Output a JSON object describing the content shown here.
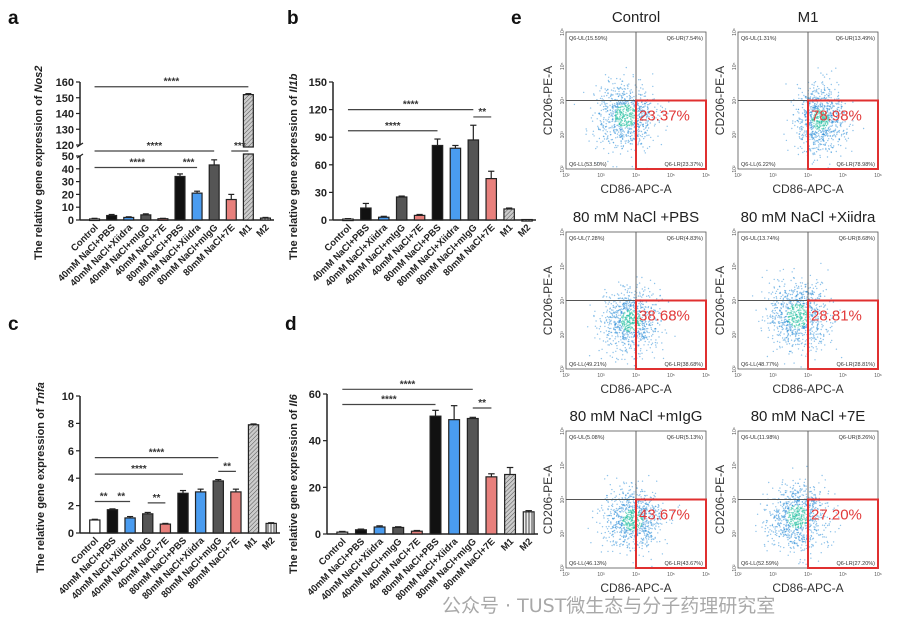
{
  "panel_letters": {
    "a": "a",
    "b": "b",
    "c": "c",
    "d": "d",
    "e": "e"
  },
  "colors": {
    "black": "#111111",
    "blue": "#4a9cf0",
    "gray": "#555555",
    "salmon": "#e8807c",
    "white": "#ffffff",
    "gate": "#e03030",
    "dot": "#2f8fd8",
    "dot_dense": "#22c0a0"
  },
  "chart_data": [
    {
      "id": "a",
      "type": "bar",
      "ylabel_prefix": "The relative gene expression of ",
      "gene": "Nos2",
      "categories": [
        "Control",
        "40mM NaCl+PBS",
        "40mM NaCl+Xiidra",
        "40mM NaCl+mIgG",
        "40mM NaCl+7E",
        "80mM NaCl+PBS",
        "80mM NaCl+Xiidra",
        "80mM NaCl+mIgG",
        "80mM NaCl+7E",
        "M1",
        "M2"
      ],
      "values": [
        0.8,
        3.5,
        2,
        4,
        1,
        34,
        21,
        43,
        16,
        152,
        1.5
      ],
      "errors": [
        0.5,
        0.8,
        0.5,
        0.8,
        0.3,
        2,
        1.5,
        4,
        4,
        0.6,
        0.5
      ],
      "ylim": [
        0,
        160
      ],
      "axis_break": [
        50,
        120
      ],
      "yticks": [
        "0",
        "10",
        "20",
        "30",
        "40",
        "50",
        "120",
        "130",
        "140",
        "150",
        "160"
      ],
      "significance": [
        {
          "from": 0,
          "to": 9,
          "y": 157,
          "label": "****"
        },
        {
          "from": 0,
          "to": 7,
          "y": 119,
          "label": "****"
        },
        {
          "from": 8,
          "to": 9,
          "y": 119,
          "label": "***"
        },
        {
          "from": 0,
          "to": 5,
          "y": 41,
          "label": "****"
        },
        {
          "from": 5,
          "to": 6,
          "y": 41,
          "label": "***"
        }
      ]
    },
    {
      "id": "b",
      "type": "bar",
      "ylabel_prefix": "The relative gene expression of ",
      "gene": "Il1b",
      "categories": [
        "Control",
        "40mM NaCl+PBS",
        "40mM NaCl+Xiidra",
        "40mM NaCl+mIgG",
        "40mM NaCl+7E",
        "80mM NaCl+PBS",
        "80mM NaCl+Xiidra",
        "80mM NaCl+mIgG",
        "80mM NaCl+7E",
        "M1",
        "M2"
      ],
      "values": [
        1,
        13,
        3,
        25,
        5,
        81,
        78,
        87,
        45,
        12,
        0.5
      ],
      "errors": [
        0.5,
        5,
        1,
        1,
        1,
        7,
        3,
        16,
        8,
        1,
        0
      ],
      "ylim": [
        0,
        150
      ],
      "yticks": [
        "0",
        "30",
        "60",
        "90",
        "120",
        "150"
      ],
      "significance": [
        {
          "from": 0,
          "to": 7,
          "y": 120,
          "label": "****"
        },
        {
          "from": 7,
          "to": 8,
          "y": 112,
          "label": "**"
        },
        {
          "from": 0,
          "to": 5,
          "y": 97,
          "label": "****"
        }
      ]
    },
    {
      "id": "c",
      "type": "bar",
      "ylabel_prefix": "The relative gene expression of ",
      "gene": "Tnfa",
      "categories": [
        "Control",
        "40mM NaCl+PBS",
        "40mM NaCl+Xiidra",
        "40mM NaCl+mIgG",
        "40mM NaCl+7E",
        "80mM NaCl+PBS",
        "80mM NaCl+Xiidra",
        "80mM NaCl+mIgG",
        "80mM NaCl+7E",
        "M1",
        "M2"
      ],
      "values": [
        0.95,
        1.7,
        1.1,
        1.4,
        0.65,
        2.9,
        3.0,
        3.8,
        3.0,
        7.9,
        0.7
      ],
      "errors": [
        0.05,
        0.06,
        0.1,
        0.1,
        0.05,
        0.2,
        0.2,
        0.1,
        0.2,
        0.06,
        0.05
      ],
      "ylim": [
        0,
        10
      ],
      "yticks": [
        "0",
        "2",
        "4",
        "6",
        "8",
        "10"
      ],
      "significance": [
        {
          "from": 0,
          "to": 7,
          "y": 5.5,
          "label": "****"
        },
        {
          "from": 0,
          "to": 5,
          "y": 4.3,
          "label": "****"
        },
        {
          "from": 0,
          "to": 1,
          "y": 2.3,
          "label": "**"
        },
        {
          "from": 1,
          "to": 2,
          "y": 2.3,
          "label": "**"
        },
        {
          "from": 3,
          "to": 4,
          "y": 2.2,
          "label": "**"
        },
        {
          "from": 7,
          "to": 8,
          "y": 4.5,
          "label": "**"
        }
      ]
    },
    {
      "id": "d",
      "type": "bar",
      "ylabel_prefix": "The relative gene expression of ",
      "gene": "Il6",
      "categories": [
        "Control",
        "40mM NaCl+PBS",
        "40mM NaCl+Xiidra",
        "40mM NaCl+mIgG",
        "40mM NaCl+7E",
        "80mM NaCl+PBS",
        "80mM NaCl+Xiidra",
        "80mM NaCl+mIgG",
        "80mM NaCl+7E",
        "M1",
        "M2"
      ],
      "values": [
        0.8,
        1.8,
        3,
        2.8,
        1.2,
        50.5,
        49,
        49.5,
        24.5,
        25.5,
        9.5
      ],
      "errors": [
        0.3,
        0.3,
        0.5,
        0.3,
        0.3,
        2.5,
        6,
        0.5,
        1.3,
        3,
        0.5
      ],
      "ylim": [
        0,
        60
      ],
      "yticks": [
        "0",
        "20",
        "40",
        "60"
      ],
      "significance": [
        {
          "from": 0,
          "to": 7,
          "y": 62,
          "label": "****"
        },
        {
          "from": 0,
          "to": 5,
          "y": 55.5,
          "label": "****"
        },
        {
          "from": 7,
          "to": 8,
          "y": 54,
          "label": "**"
        }
      ]
    }
  ],
  "flow": {
    "xlabel": "CD86-APC-A",
    "ylabel": "CD206-PE-A",
    "ticks": [
      "10²",
      "10³",
      "10⁴",
      "10⁵",
      "10⁶"
    ],
    "axis_log_range": [
      2,
      6
    ],
    "gate_log": [
      4,
      4
    ],
    "plots": [
      {
        "title": "Control",
        "ul": "Q6-UL(15.59%)",
        "ur": "Q6-UR(7.54%)",
        "ll": "Q6-LL(53.50%)",
        "lr": "Q6-LR(23.37%)",
        "big": "23.37%",
        "cloud_center": [
          3.7,
          3.55
        ],
        "cloud_sd": [
          0.42,
          0.48
        ]
      },
      {
        "title": "M1",
        "ul": "Q6-UL(1.31%)",
        "ur": "Q6-UR(13.49%)",
        "ll": "Q6-LL(6.22%)",
        "lr": "Q6-LR(78.98%)",
        "big": "78.98%",
        "cloud_center": [
          4.35,
          3.45
        ],
        "cloud_sd": [
          0.35,
          0.45
        ]
      },
      {
        "title": "80 mM NaCl +PBS",
        "ul": "Q6-UL(7.28%)",
        "ur": "Q6-UR(4.83%)",
        "ll": "Q6-LL(49.21%)",
        "lr": "Q6-LR(38.68%)",
        "big": "38.68%",
        "cloud_center": [
          3.85,
          3.4
        ],
        "cloud_sd": [
          0.42,
          0.45
        ]
      },
      {
        "title": "80 mM NaCl +Xiidra",
        "ul": "Q6-UL(13.74%)",
        "ur": "Q6-UR(8.68%)",
        "ll": "Q6-LL(48.77%)",
        "lr": "Q6-LR(28.81%)",
        "big": "28.81%",
        "cloud_center": [
          3.7,
          3.55
        ],
        "cloud_sd": [
          0.42,
          0.5
        ]
      },
      {
        "title": "80 mM NaCl +mIgG",
        "ul": "Q6-UL(5.08%)",
        "ur": "Q6-UR(5.13%)",
        "ll": "Q6-LL(46.13%)",
        "lr": "Q6-LR(43.67%)",
        "big": "43.67%",
        "cloud_center": [
          3.9,
          3.4
        ],
        "cloud_sd": [
          0.42,
          0.45
        ]
      },
      {
        "title": "80 mM NaCl +7E",
        "ul": "Q6-UL(11.98%)",
        "ur": "Q6-UR(8.26%)",
        "ll": "Q6-LL(52.59%)",
        "lr": "Q6-LR(27.20%)",
        "big": "27.20%",
        "cloud_center": [
          3.7,
          3.5
        ],
        "cloud_sd": [
          0.42,
          0.48
        ]
      }
    ]
  },
  "watermark": "公众号 · TUST微生态与分子药理研究室"
}
